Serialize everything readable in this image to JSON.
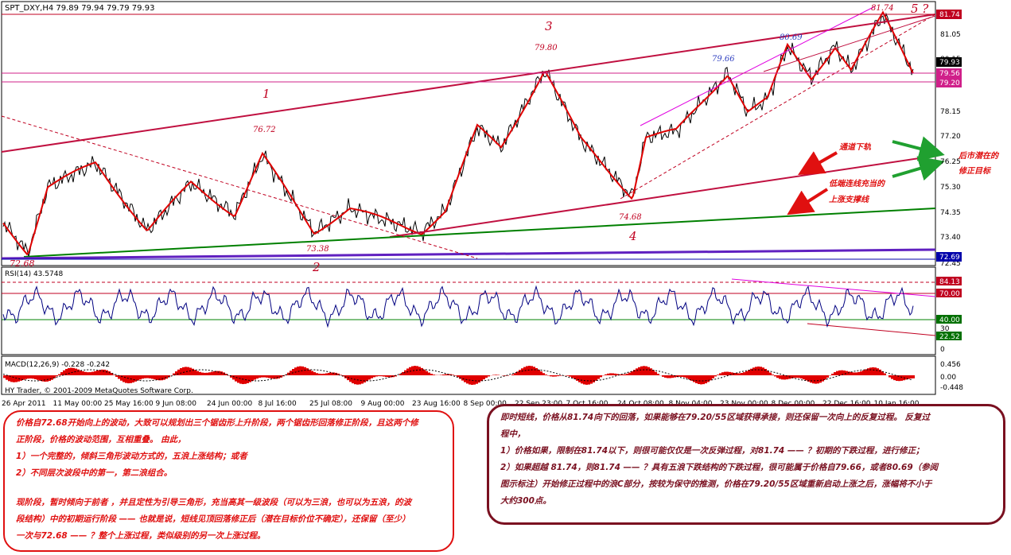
{
  "main_chart": {
    "header": "SPT_DXY,H4  79.89 79.94 79.79 79.93",
    "price_axis": [
      "81.05",
      "80.15",
      "78.15",
      "77.20",
      "76.25",
      "75.30",
      "74.35",
      "73.40",
      "72.45"
    ],
    "price_tags": [
      {
        "text": "81.74",
        "bg": "#c00020"
      },
      {
        "text": "79.93",
        "bg": "#000000"
      },
      {
        "text": "79.56",
        "bg": "#d0208a"
      },
      {
        "text": "79.20",
        "bg": "#d0208a"
      },
      {
        "text": "72.69",
        "bg": "#0000aa"
      }
    ],
    "wave_labels": [
      "1",
      "2",
      "3",
      "4",
      "5 ?"
    ],
    "price_labels": {
      "p72_68": "72.68",
      "p76_72": "76.72",
      "p73_38": "73.38",
      "p79_80": "79.80",
      "p74_68": "74.68",
      "p79_66": "79.66",
      "p80_69": "80.69",
      "p81_74": "81.74"
    },
    "annotations": {
      "channel_lower": "通道下轨",
      "support_line_1": "低端连线充当的",
      "support_line_2": "上涨支撑线",
      "target_1": "后市潜在的",
      "target_2": "修正目标"
    }
  },
  "rsi_panel": {
    "header": "RSI(14) 43.5748",
    "axis": [
      "30",
      "0"
    ],
    "tags": [
      {
        "text": "84.13",
        "bg": "#c00020"
      },
      {
        "text": "70.00",
        "bg": "#c00020"
      },
      {
        "text": "40.00",
        "bg": "#007000"
      },
      {
        "text": "22.52",
        "bg": "#007000"
      }
    ]
  },
  "macd_panel": {
    "header": "MACD(12,26,9) -0.228 -0.242",
    "axis": [
      "0.456",
      "0.00",
      "-0.448"
    ],
    "copyright": "HY Trader, © 2001-2009 MetaQuotes Software Corp."
  },
  "time_axis": [
    "26 Apr 2011",
    "11 May 00:00",
    "25 May 16:00",
    "9 Jun 08:00",
    "24 Jun 00:00",
    "8 Jul 16:00",
    "25 Jul 08:00",
    "9 Aug 00:00",
    "23 Aug 16:00",
    "8 Sep 00:00",
    "22 Sep 23:00",
    "7 Oct 16:00",
    "24 Oct 08:00",
    "8 Nov 04:00",
    "23 Nov 00:00",
    "8 Dec 00:00",
    "22 Dec 16:00",
    "10 Jan 16:00"
  ],
  "notes": {
    "left": {
      "line1": "价格自72.68开始向上的波动，大致可以规划出三个锯齿形上升阶段，两个锯齿形回落修正阶段，且这两个修",
      "line2": "正阶段，价格的波动范围，互相重叠。 由此，",
      "line3": "1）一个完整的，倾斜三角形波动方式的，五浪上涨结构；或者",
      "line4": "2）不同层次波段中的第一，第二浪组合。",
      "line5": "现阶段，暂时倾向于前者 ，并且定性为引导三角形，充当高其一级波段（可以为三浪，也可以为五浪，的波",
      "line6": "段结构）中的初期运行阶段 —— 也就是说，短线见顶回落修正后（潜在目标价位不确定），还保留（至少）",
      "line7": "一次与72.68 —— ？整个上涨过程，类似级别的另一次上涨过程。"
    },
    "right": {
      "line1": "即时短线，价格从81.74向下的回落，如果能够在79.20/55区域获得承接，则还保留一次向上的反复过程。 反复过",
      "line2": "程中，",
      "line3": "1）价格如果，限制在81.74以下，则很可能仅仅是一次反弹过程，对81.74 —— ？初期的下跌过程，进行修正；",
      "line4": "2）如果超越 81.74，则81.74 —— ？具有五浪下跌结构的下跌过程，很可能属于价格自79.66，或者80.69（参阅",
      "line5": "图示标注）开始修正过程中的浪C部分，按较为保守的推测，价格在79.20/55区域重新启动上涨之后，涨幅将不小于",
      "line6": "大约300点。"
    }
  }
}
